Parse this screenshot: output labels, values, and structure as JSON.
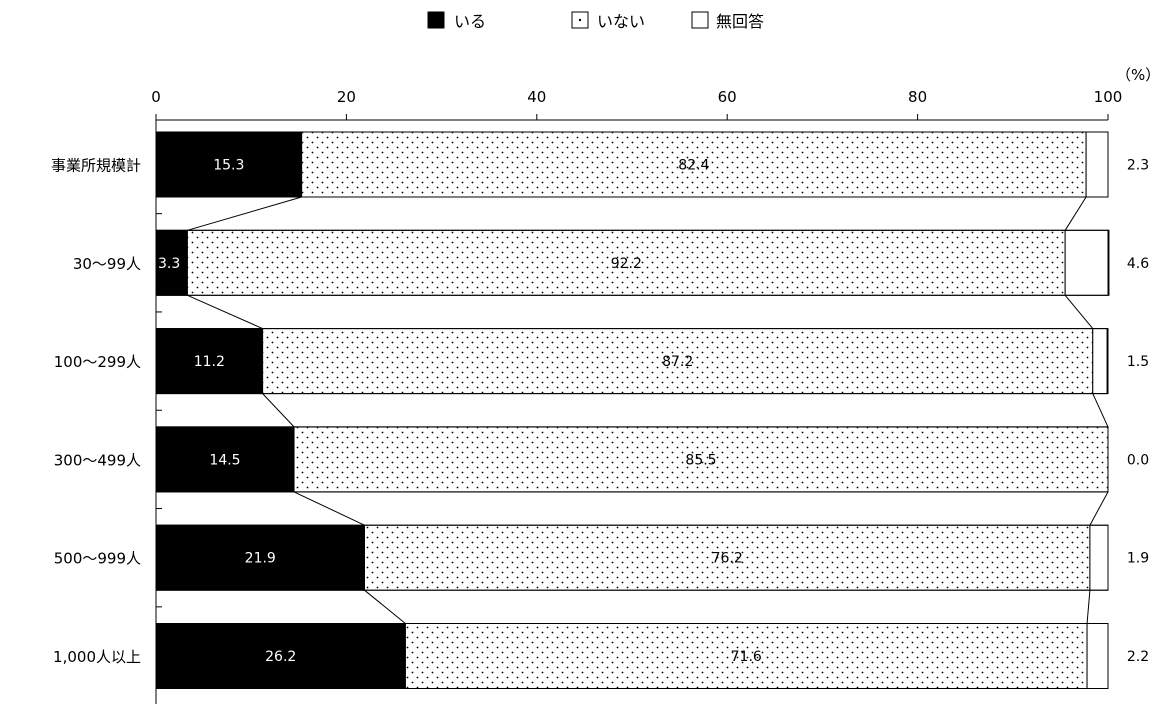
{
  "legend": {
    "items": [
      {
        "label": "いる",
        "style": "solid-black"
      },
      {
        "label": "いない",
        "style": "dotted"
      },
      {
        "label": "無回答",
        "style": "white"
      }
    ]
  },
  "chart_data": {
    "type": "bar",
    "orientation": "horizontal-stacked",
    "unit_label": "（%）",
    "xlim": [
      0,
      100
    ],
    "xticks": [
      0,
      20,
      40,
      60,
      80,
      100
    ],
    "categories": [
      "事業所規模計",
      "30～99人",
      "100～299人",
      "300～499人",
      "500～999人",
      "1,000人以上"
    ],
    "series": [
      {
        "name": "いる",
        "values": [
          15.3,
          3.3,
          11.2,
          14.5,
          21.9,
          26.2
        ],
        "fill": "#000000"
      },
      {
        "name": "いない",
        "values": [
          82.4,
          92.2,
          87.2,
          85.5,
          76.2,
          71.6
        ],
        "fill": "dots"
      },
      {
        "name": "無回答",
        "values": [
          2.3,
          4.6,
          1.5,
          0.0,
          1.9,
          2.2
        ],
        "fill": "#ffffff"
      }
    ],
    "legend_position": "top-center",
    "grid": false,
    "connector_lines": true
  }
}
